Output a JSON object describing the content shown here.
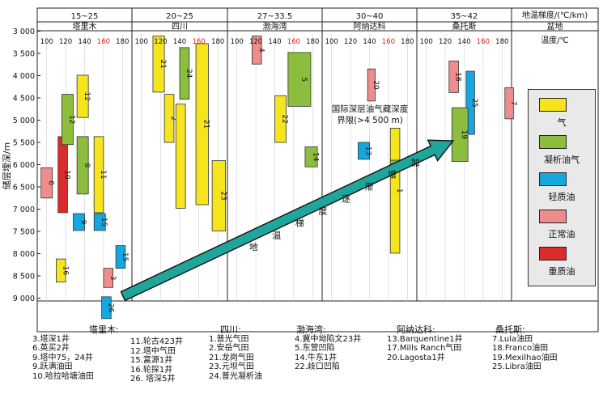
{
  "title_row": {
    "gradient_header": "地温梯度/(℃/km)",
    "basin_header": "盆地",
    "temp_header": "温度/℃"
  },
  "y_axis": {
    "label": "储层埋深/m",
    "ticks": [
      "3 000",
      "3 500",
      "4 000",
      "4 500",
      "5 000",
      "5 500",
      "6 000",
      "6 500",
      "7 000",
      "7 500",
      "8 000",
      "8 500",
      "9 000"
    ]
  },
  "basins": [
    {
      "gradient": "15~25",
      "name": "塔里木",
      "temp_ticks": [
        "100",
        "120",
        "140",
        "160",
        "180"
      ]
    },
    {
      "gradient": "20~25",
      "name": "四川",
      "temp_ticks": [
        "100",
        "120",
        "140",
        "160",
        "180"
      ]
    },
    {
      "gradient": "27~33.5",
      "name": "渤海湾",
      "temp_ticks": [
        "100",
        "120",
        "140",
        "160",
        "180"
      ]
    },
    {
      "gradient": "30~40",
      "name": "阿纳达科",
      "temp_ticks": [
        "100",
        "120",
        "140",
        "160",
        "180"
      ]
    },
    {
      "gradient": "35~42",
      "name": "桑托斯",
      "temp_ticks": [
        "100",
        "120",
        "140",
        "160",
        "180"
      ]
    }
  ],
  "arrow": {
    "trend_label": [
      "地",
      "温",
      "梯",
      "度",
      "逐",
      "渐",
      "增",
      "加"
    ],
    "limit_label_1": "国际深层油气藏深度",
    "limit_label_2": "界限(>4 500 m)"
  },
  "legend": [
    {
      "label": "气",
      "color": "#f5e41e"
    },
    {
      "label": "凝析油气",
      "color": "#8dbd3c"
    },
    {
      "label": "轻质油",
      "color": "#17a7df"
    },
    {
      "label": "正常油",
      "color": "#ef8d8d"
    },
    {
      "label": "重质油",
      "color": "#dc2b2b"
    }
  ],
  "chart_data": {
    "type": "range-bar",
    "ylabel": "储层埋深/m",
    "ylim": [
      3000,
      9200
    ],
    "temp_axis_label": "温度/℃",
    "temp_range_per_panel": [
      90,
      190
    ],
    "highlight_tick": "160",
    "fluid_colors": {
      "gas": "#f5e41e",
      "condensate": "#8dbd3c",
      "light": "#17a7df",
      "normal": "#ef8d8d",
      "heavy": "#dc2b2b"
    },
    "bars": [
      {
        "basin": 0,
        "label": "6",
        "type": "normal",
        "t0": 94,
        "t1": 106,
        "d0": 6070,
        "d1": 6750
      },
      {
        "basin": 0,
        "label": "10",
        "type": "heavy",
        "t0": 112,
        "t1": 122,
        "d0": 5370,
        "d1": 7080
      },
      {
        "basin": 0,
        "label": "12",
        "type": "condensate",
        "t0": 116,
        "t1": 128,
        "d0": 4420,
        "d1": 5550
      },
      {
        "basin": 0,
        "label": "16",
        "type": "gas",
        "t0": 110,
        "t1": 120,
        "d0": 8120,
        "d1": 8640
      },
      {
        "basin": 0,
        "label": "9",
        "type": "light",
        "t0": 128,
        "t1": 140,
        "d0": 7100,
        "d1": 7480
      },
      {
        "basin": 0,
        "label": "8",
        "type": "condensate",
        "t0": 132,
        "t1": 144,
        "d0": 5370,
        "d1": 6660
      },
      {
        "basin": 0,
        "label": "12",
        "type": "gas",
        "t0": 132,
        "t1": 144,
        "d0": 3990,
        "d1": 4940
      },
      {
        "basin": 0,
        "label": "11",
        "type": "gas",
        "t0": 150,
        "t1": 160,
        "d0": 5370,
        "d1": 7080
      },
      {
        "basin": 0,
        "label": "15",
        "type": "light",
        "t0": 150,
        "t1": 162,
        "d0": 7100,
        "d1": 7480
      },
      {
        "basin": 0,
        "label": "3",
        "type": "normal",
        "t0": 160,
        "t1": 170,
        "d0": 8330,
        "d1": 8760
      },
      {
        "basin": 0,
        "label": "15",
        "type": "light",
        "t0": 173,
        "t1": 183,
        "d0": 7820,
        "d1": 8330
      },
      {
        "basin": 0,
        "label": "26",
        "type": "light",
        "t0": 158,
        "t1": 168,
        "d0": 8970,
        "d1": 9460
      },
      {
        "basin": 1,
        "label": "21",
        "type": "gas",
        "t0": 112,
        "t1": 124,
        "d0": 3110,
        "d1": 4370
      },
      {
        "basin": 1,
        "label": "2",
        "type": "gas",
        "t0": 124,
        "t1": 134,
        "d0": 4420,
        "d1": 5500
      },
      {
        "basin": 1,
        "label": "24",
        "type": "condensate",
        "t0": 140,
        "t1": 150,
        "d0": 3370,
        "d1": 4530
      },
      {
        "basin": 1,
        "label": "",
        "type": "gas",
        "t0": 136,
        "t1": 146,
        "d0": 4640,
        "d1": 6980
      },
      {
        "basin": 1,
        "label": "21",
        "type": "gas",
        "t0": 157,
        "t1": 170,
        "d0": 3280,
        "d1": 6900
      },
      {
        "basin": 1,
        "label": "23",
        "type": "gas",
        "t0": 174,
        "t1": 188,
        "d0": 5910,
        "d1": 7490
      },
      {
        "basin": 2,
        "label": "4",
        "type": "normal",
        "t0": 116,
        "t1": 126,
        "d0": 3110,
        "d1": 3740
      },
      {
        "basin": 2,
        "label": "5",
        "type": "condensate",
        "t0": 154,
        "t1": 178,
        "d0": 3480,
        "d1": 4690
      },
      {
        "basin": 2,
        "label": "22",
        "type": "gas",
        "t0": 140,
        "t1": 152,
        "d0": 4450,
        "d1": 5500
      },
      {
        "basin": 2,
        "label": "14",
        "type": "condensate",
        "t0": 172,
        "t1": 185,
        "d0": 5600,
        "d1": 6050
      },
      {
        "basin": 3,
        "label": "20",
        "type": "normal",
        "t0": 138,
        "t1": 146,
        "d0": 3850,
        "d1": 4570
      },
      {
        "basin": 3,
        "label": "13",
        "type": "light",
        "t0": 128,
        "t1": 140,
        "d0": 5500,
        "d1": 5880
      },
      {
        "basin": 3,
        "label": "1",
        "type": "gas",
        "t0": 162,
        "t1": 172,
        "d0": 5180,
        "d1": 7990
      },
      {
        "basin": 3,
        "label": "17",
        "type": "condensate",
        "t0": 162,
        "t1": 172,
        "d0": 5900,
        "d1": 6140
      },
      {
        "basin": 4,
        "label": "18",
        "type": "normal",
        "t0": 124,
        "t1": 134,
        "d0": 3670,
        "d1": 4380
      },
      {
        "basin": 4,
        "label": "25",
        "type": "light",
        "t0": 142,
        "t1": 151,
        "d0": 3900,
        "d1": 5320
      },
      {
        "basin": 4,
        "label": "19",
        "type": "condensate",
        "t0": 127,
        "t1": 144,
        "d0": 4720,
        "d1": 5930
      },
      {
        "basin": 4,
        "label": "7",
        "type": "normal",
        "t0": 183,
        "t1": 192,
        "d0": 4270,
        "d1": 4970
      }
    ]
  },
  "notes": [
    {
      "header": "塔里木:",
      "lines": [
        "3.塔深1井",
        "6.英买2井",
        "9.塔中75，24井",
        "9.跃满油田",
        "10.哈拉哈塘油田"
      ]
    },
    {
      "header": "",
      "lines": [
        "11.轮古423井",
        "12.塔中气田",
        "15.富源1井",
        "16.轮探1井",
        "26. 塔深5井"
      ]
    },
    {
      "header": "四川:",
      "lines": [
        "1.普光气田",
        "2.安岳气田",
        "21.龙岗气田",
        "23.元坝气田",
        "24.普光凝析油"
      ]
    },
    {
      "header": "渤海湾:",
      "lines": [
        "4.冀中坳陷文23井",
        "5.东营凹陷",
        "14.牛东1井",
        "22.歧口凹陷"
      ]
    },
    {
      "header": "阿纳达科:",
      "lines": [
        "13.Barquentine1井",
        "17.Mills Ranch气田",
        "20.Lagosta1井"
      ]
    },
    {
      "header": "桑托斯:",
      "lines": [
        "7.Lula油田",
        "18.Franco油田",
        "19.Mexilhao油田",
        "25.Libra油田"
      ]
    }
  ]
}
